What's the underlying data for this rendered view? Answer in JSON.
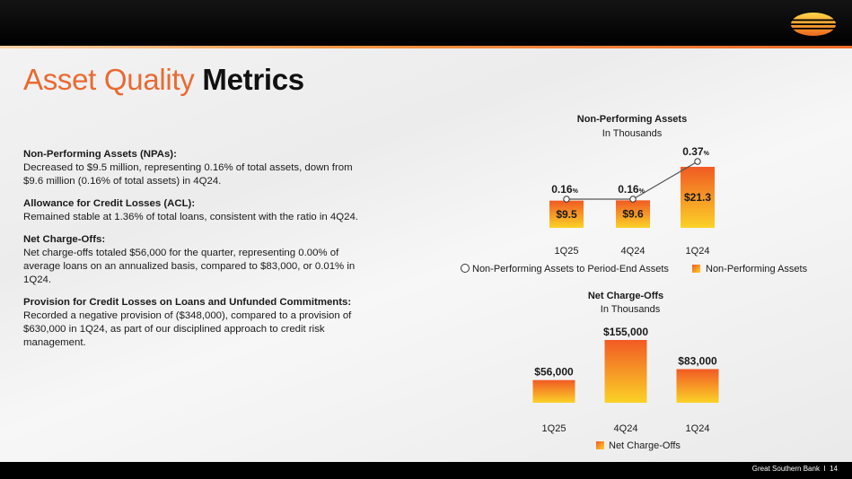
{
  "slide": {
    "title_part1": "Asset Quality",
    "title_part2": "Metrics"
  },
  "bullets": [
    {
      "heading": "Non-Performing Assets (NPAs):",
      "text": "Decreased to $9.5 million, representing 0.16% of total assets, down from $9.6 million (0.16% of total assets) in 4Q24."
    },
    {
      "heading": "Allowance for Credit Losses (ACL):",
      "text": "Remained stable at 1.36% of total loans, consistent with the ratio in 4Q24."
    },
    {
      "heading": "Net Charge-Offs:",
      "text": "Net charge-offs totaled $56,000 for the quarter, representing 0.00% of average loans on an annualized basis, compared to $83,000, or 0.01% in 1Q24."
    },
    {
      "heading": "Provision for Credit Losses on Loans and Unfunded Commitments:",
      "text": "Recorded a negative provision of ($348,000), compared to a provision of $630,000 in 1Q24, as part of our disciplined approach to credit risk management."
    }
  ],
  "footer": {
    "company": "Great Southern Bank",
    "separator": "I",
    "page_number": "14"
  },
  "colors": {
    "accent": "#e96a32",
    "bar_top": "#f15a24",
    "bar_bottom": "#fbd227",
    "line": "#555555"
  },
  "chart_data": [
    {
      "type": "bar",
      "title": "Non-Performing Assets",
      "subtitle": "In Thousands",
      "categories": [
        "1Q25",
        "4Q24",
        "1Q24"
      ],
      "series": [
        {
          "name": "Non-Performing Assets",
          "kind": "bar",
          "values": [
            9.5,
            9.6,
            21.3
          ],
          "labels": [
            "$9.5",
            "$9.6",
            "$21.3"
          ]
        },
        {
          "name": "Non-Performing Assets to Period-End Assets",
          "kind": "line",
          "values": [
            0.16,
            0.16,
            0.37
          ],
          "labels": [
            "0.16",
            "0.16",
            "0.37"
          ],
          "unit": "%"
        }
      ],
      "ylim": [
        0,
        26
      ],
      "legend": [
        "Non-Performing Assets to Period-End Assets",
        "Non-Performing Assets"
      ]
    },
    {
      "type": "bar",
      "title": "Net Charge-Offs",
      "subtitle": "In Thousands",
      "categories": [
        "1Q25",
        "4Q24",
        "1Q24"
      ],
      "series": [
        {
          "name": "Net Charge-Offs",
          "kind": "bar",
          "values": [
            56000,
            155000,
            83000
          ],
          "labels": [
            "$56,000",
            "$155,000",
            "$83,000"
          ]
        }
      ],
      "ylim": [
        0,
        155000
      ],
      "legend": [
        "Net Charge-Offs"
      ]
    }
  ]
}
